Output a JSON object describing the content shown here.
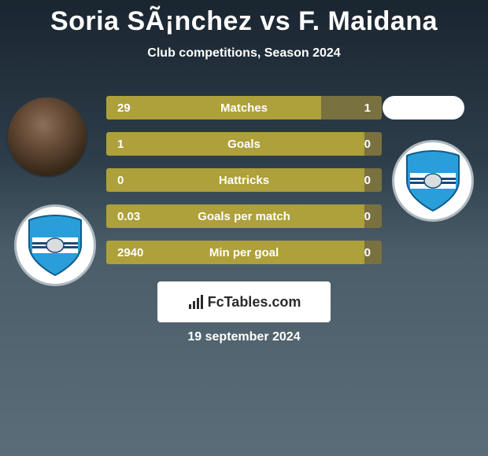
{
  "title": "Soria SÃ¡nchez vs F. Maidana",
  "subtitle": "Club competitions, Season 2024",
  "date": "19 september 2024",
  "footer_brand": "FcTables.com",
  "colors": {
    "bar_left": "#aea03a",
    "bar_right": "#7a7140",
    "text": "#ffffff",
    "badge_border": "#aeb8c0",
    "shield_blue": "#2a9ed8",
    "shield_stripe": "#1a4a7a"
  },
  "stats": [
    {
      "label": "Matches",
      "left_val": "29",
      "right_val": "1",
      "left_pct": 78,
      "right_pct": 22
    },
    {
      "label": "Goals",
      "left_val": "1",
      "right_val": "0",
      "left_pct": 97,
      "right_pct": 3
    },
    {
      "label": "Hattricks",
      "left_val": "0",
      "right_val": "0",
      "left_pct": 97,
      "right_pct": 3
    },
    {
      "label": "Goals per match",
      "left_val": "0.03",
      "right_val": "0",
      "left_pct": 97,
      "right_pct": 3
    },
    {
      "label": "Min per goal",
      "left_val": "2940",
      "right_val": "0",
      "left_pct": 97,
      "right_pct": 3
    }
  ]
}
